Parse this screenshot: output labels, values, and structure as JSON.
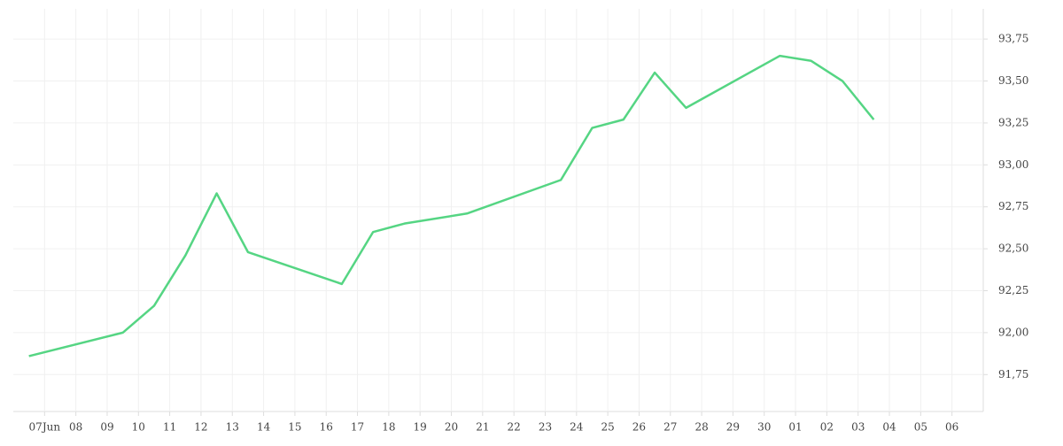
{
  "chart_data": {
    "type": "line",
    "x": [
      -0.5,
      2.5,
      3.5,
      4.5,
      5.5,
      6.5,
      9.5,
      10.5,
      11.5,
      13.5,
      16.5,
      17.5,
      18.5,
      19.5,
      20.5,
      23.5,
      24.5,
      25.5,
      26.5
    ],
    "series": [
      {
        "color": "#55d583",
        "values": [
          91.86,
          92.0,
          92.16,
          92.46,
          92.83,
          92.48,
          92.29,
          92.6,
          92.65,
          92.71,
          92.91,
          93.22,
          93.27,
          93.55,
          93.34,
          93.65,
          93.62,
          93.5,
          93.27
        ]
      }
    ],
    "xlim": [
      -1,
      30
    ],
    "xticks": [
      {
        "value": 0,
        "label": "07Jun"
      },
      {
        "value": 1,
        "label": "08"
      },
      {
        "value": 2,
        "label": "09"
      },
      {
        "value": 3,
        "label": "10"
      },
      {
        "value": 4,
        "label": "11"
      },
      {
        "value": 5,
        "label": "12"
      },
      {
        "value": 6,
        "label": "13"
      },
      {
        "value": 7,
        "label": "14"
      },
      {
        "value": 8,
        "label": "15"
      },
      {
        "value": 9,
        "label": "16"
      },
      {
        "value": 10,
        "label": "17"
      },
      {
        "value": 11,
        "label": "18"
      },
      {
        "value": 12,
        "label": "19"
      },
      {
        "value": 13,
        "label": "20"
      },
      {
        "value": 14,
        "label": "21"
      },
      {
        "value": 15,
        "label": "22"
      },
      {
        "value": 16,
        "label": "23"
      },
      {
        "value": 17,
        "label": "24"
      },
      {
        "value": 18,
        "label": "25"
      },
      {
        "value": 19,
        "label": "26"
      },
      {
        "value": 20,
        "label": "27"
      },
      {
        "value": 21,
        "label": "28"
      },
      {
        "value": 22,
        "label": "29"
      },
      {
        "value": 23,
        "label": "30"
      },
      {
        "value": 24,
        "label": "01"
      },
      {
        "value": 25,
        "label": "02"
      },
      {
        "value": 26,
        "label": "03"
      },
      {
        "value": 27,
        "label": "04"
      },
      {
        "value": 28,
        "label": "05"
      },
      {
        "value": 29,
        "label": "06"
      }
    ],
    "ylim": [
      91.53,
      93.93
    ],
    "yticks": [
      {
        "value": 91.75,
        "label": "91,75"
      },
      {
        "value": 92.0,
        "label": "92,00"
      },
      {
        "value": 92.25,
        "label": "92,25"
      },
      {
        "value": 92.5,
        "label": "92,50"
      },
      {
        "value": 92.75,
        "label": "92,75"
      },
      {
        "value": 93.0,
        "label": "93,00"
      },
      {
        "value": 93.25,
        "label": "93,25"
      },
      {
        "value": 93.5,
        "label": "93,50"
      },
      {
        "value": 93.75,
        "label": "93,75"
      }
    ],
    "grid": true
  }
}
